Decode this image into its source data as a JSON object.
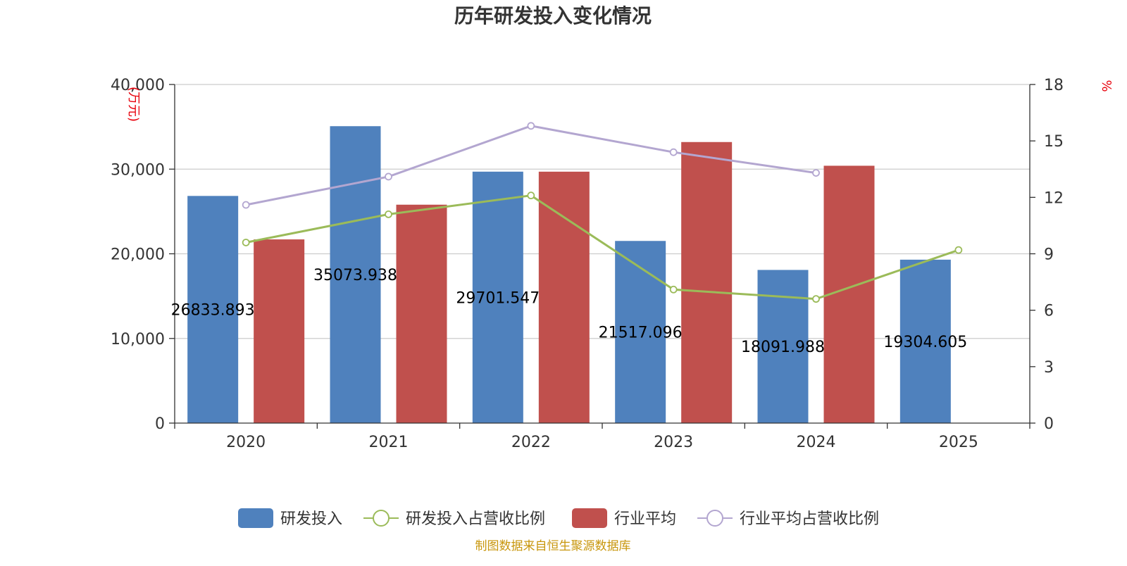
{
  "chart_data": {
    "type": "bar",
    "title": "历年研发投入变化情况",
    "categories": [
      "2020",
      "2021",
      "2022",
      "2023",
      "2024",
      "2025"
    ],
    "left_axis": {
      "unit": "(万元)",
      "ylim": [
        0,
        40000
      ],
      "ticks": [
        "0",
        "10,000",
        "20,000",
        "30,000",
        "40,000"
      ],
      "tick_values": [
        0,
        10000,
        20000,
        30000,
        40000
      ]
    },
    "right_axis": {
      "unit": "%",
      "ylim": [
        0,
        18
      ],
      "ticks": [
        "0",
        "3",
        "6",
        "9",
        "12",
        "15",
        "18"
      ],
      "tick_values": [
        0,
        3,
        6,
        9,
        12,
        15,
        18
      ]
    },
    "series": [
      {
        "name": "研发投入",
        "kind": "bar",
        "axis": "left",
        "color": "#4f81bd",
        "values": [
          26833.893,
          35073.938,
          29701.547,
          21517.096,
          18091.988,
          19304.605
        ],
        "labels": [
          "26833.893",
          "35073.938",
          "29701.547",
          "21517.096",
          "18091.988",
          "19304.605"
        ]
      },
      {
        "name": "研发投入占营收比例",
        "kind": "line",
        "axis": "right",
        "color": "#9bbb59",
        "values": [
          9.6,
          11.1,
          12.1,
          7.1,
          6.6,
          9.2
        ]
      },
      {
        "name": "行业平均",
        "kind": "bar",
        "axis": "left",
        "color": "#c0504d",
        "values": [
          21700,
          25800,
          29700,
          33200,
          30400,
          null
        ]
      },
      {
        "name": "行业平均占营收比例",
        "kind": "line",
        "axis": "right",
        "color": "#b3a6d0",
        "values": [
          11.6,
          13.1,
          15.8,
          14.4,
          13.3,
          null
        ]
      }
    ],
    "legend_position": "bottom"
  },
  "source_note": "制图数据来自恒生聚源数据库"
}
